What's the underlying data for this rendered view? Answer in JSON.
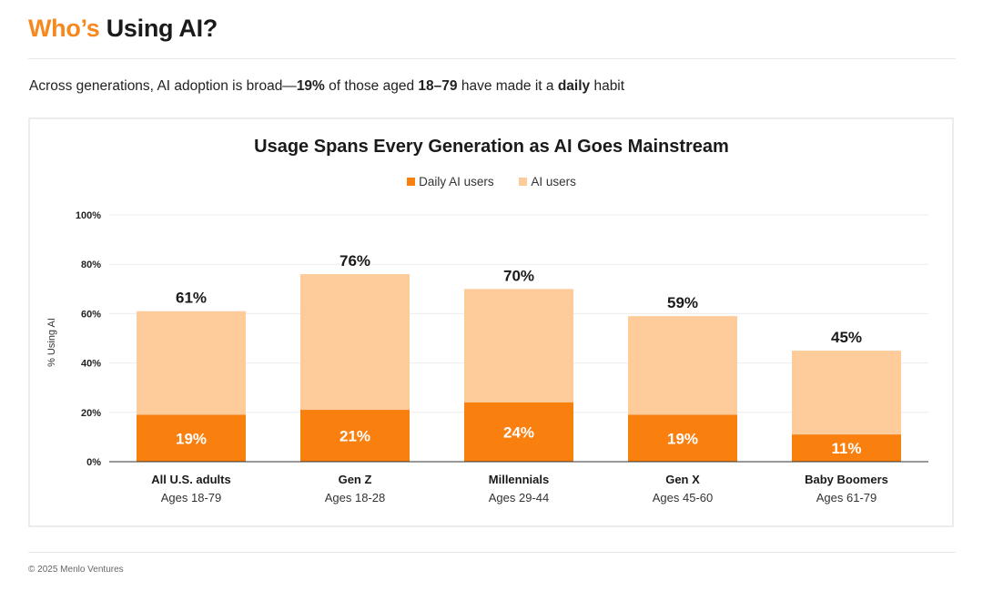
{
  "header": {
    "title_accent": "Who’s",
    "title_rest": " Using AI?",
    "subtitle_parts": [
      "Across generations, AI adoption is broad—",
      "19%",
      " of those aged ",
      "18–79",
      " have made it a ",
      "daily",
      " habit"
    ]
  },
  "footer": {
    "copyright": "© 2025 Menlo Ventures"
  },
  "colors": {
    "daily": "#f97f0f",
    "users": "#fdcc9a",
    "accent": "#f5891f"
  },
  "chart_data": {
    "type": "bar",
    "stacked": true,
    "title": "Usage Spans Every Generation as AI Goes Mainstream",
    "ylabel": "% Using AI",
    "xlabel": "",
    "ylim": [
      0,
      100
    ],
    "yticks": [
      0,
      20,
      40,
      60,
      80,
      100
    ],
    "ytick_labels": [
      "0%",
      "20%",
      "40%",
      "60%",
      "80%",
      "100%"
    ],
    "grid": true,
    "legend_position": "top-center",
    "categories": [
      "All U.S. adults",
      "Gen Z",
      "Millennials",
      "Gen X",
      "Baby Boomers"
    ],
    "sublabels": [
      "Ages 18-79",
      "Ages 18-28",
      "Ages 29-44",
      "Ages 45-60",
      "Ages 61-79"
    ],
    "series": [
      {
        "name": "Daily AI users",
        "values": [
          19,
          21,
          24,
          19,
          11
        ],
        "labels": [
          "19%",
          "21%",
          "24%",
          "19%",
          "11%"
        ]
      },
      {
        "name": "AI users",
        "values": [
          61,
          76,
          70,
          59,
          45
        ],
        "labels": [
          "61%",
          "76%",
          "70%",
          "59%",
          "45%"
        ]
      }
    ]
  }
}
